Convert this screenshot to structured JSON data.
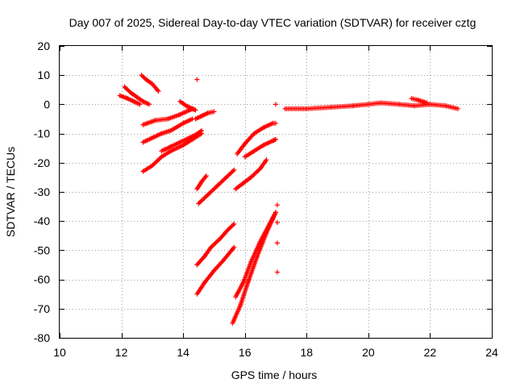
{
  "chart_data": {
    "type": "scatter",
    "title": "Day 007 of 2025, Sidereal Day-to-day VTEC variation (SDTVAR) for receiver cztg",
    "xlabel": "GPS time / hours",
    "ylabel": "SDTVAR / TECUs",
    "xlim": [
      10,
      24
    ],
    "ylim": [
      -80,
      20
    ],
    "xticks": [
      "10",
      "12",
      "14",
      "16",
      "18",
      "20",
      "22",
      "24"
    ],
    "yticks": [
      "20",
      "10",
      "0",
      "-10",
      "-20",
      "-30",
      "-40",
      "-50",
      "-60",
      "-70",
      "-80"
    ],
    "grid": true,
    "marker": "+",
    "series_color": "#ff0000",
    "segments": [
      {
        "name": "cluster-12h-a",
        "x": [
          11.95,
          12.2,
          12.4,
          12.6
        ],
        "y": [
          3,
          2,
          1,
          0
        ]
      },
      {
        "name": "cluster-12h-b",
        "x": [
          12.1,
          12.3,
          12.5,
          12.7,
          12.9
        ],
        "y": [
          6,
          4,
          2.5,
          1,
          0
        ]
      },
      {
        "name": "arc-12.7-5",
        "x": [
          12.65,
          12.8,
          13.0,
          13.2
        ],
        "y": [
          10,
          8.5,
          7,
          4.5
        ]
      },
      {
        "name": "arc-12.7-7",
        "x": [
          12.7,
          13.1,
          13.5,
          13.9,
          14.2,
          14.3
        ],
        "y": [
          -7,
          -5.5,
          -5,
          -3.5,
          -2,
          -1.5
        ]
      },
      {
        "name": "arc-12.7-13",
        "x": [
          12.7,
          13.0,
          13.3,
          13.6,
          14.0,
          14.3
        ],
        "y": [
          -13,
          -11.5,
          -10,
          -9,
          -6.5,
          -5
        ]
      },
      {
        "name": "arc-12.7-23",
        "x": [
          12.7,
          13.0,
          13.3,
          13.6,
          14.0,
          14.3,
          14.6
        ],
        "y": [
          -23,
          -21,
          -18,
          -16,
          -14,
          -12,
          -10
        ]
      },
      {
        "name": "arc-13.3-16",
        "x": [
          13.3,
          13.6,
          13.9,
          14.2,
          14.4,
          14.6
        ],
        "y": [
          -16,
          -14.5,
          -13,
          -11.5,
          -10.5,
          -9
        ]
      },
      {
        "name": "arc-14.0-1",
        "x": [
          13.9,
          14.1,
          14.3,
          14.4
        ],
        "y": [
          1,
          -0.5,
          -1.5,
          -2
        ]
      },
      {
        "name": "arc-14.4-5",
        "x": [
          14.4,
          14.6,
          14.8,
          15.0
        ],
        "y": [
          -5,
          -4,
          -3,
          -2.5
        ]
      },
      {
        "name": "arc-14.5-29",
        "x": [
          14.45,
          14.6,
          14.75
        ],
        "y": [
          -29,
          -26.5,
          -24.5
        ]
      },
      {
        "name": "arc-14.5-34",
        "x": [
          14.5,
          14.8,
          15.1,
          15.4,
          15.65
        ],
        "y": [
          -34,
          -31,
          -28,
          -25,
          -22.5
        ]
      },
      {
        "name": "arc-14.5-55",
        "x": [
          14.45,
          14.7,
          14.9,
          15.2,
          15.45,
          15.65
        ],
        "y": [
          -55,
          -52,
          -49,
          -46,
          -43,
          -41
        ]
      },
      {
        "name": "arc-14.5-65",
        "x": [
          14.45,
          14.7,
          15.0,
          15.3,
          15.65
        ],
        "y": [
          -65,
          -61,
          -57,
          -53.5,
          -49
        ]
      },
      {
        "name": "arc-15.8-17",
        "x": [
          15.75,
          16.0,
          16.3,
          16.6,
          16.9,
          17.0
        ],
        "y": [
          -17,
          -13.5,
          -10,
          -8,
          -6.5,
          -6.5
        ]
      },
      {
        "name": "arc-16.0-18",
        "x": [
          16.0,
          16.3,
          16.6,
          16.9,
          17.0
        ],
        "y": [
          -18,
          -16,
          -14,
          -12.5,
          -12
        ]
      },
      {
        "name": "arc-15.7-29",
        "x": [
          15.7,
          15.95,
          16.2,
          16.5,
          16.7
        ],
        "y": [
          -29,
          -27,
          -25,
          -22,
          -19
        ]
      },
      {
        "name": "arc-15.7-66",
        "x": [
          15.7,
          15.95,
          16.2,
          16.5,
          16.8,
          17.0
        ],
        "y": [
          -66,
          -61,
          -54,
          -47,
          -41,
          -37
        ]
      },
      {
        "name": "arc-15.6-75",
        "x": [
          15.6,
          15.85,
          16.1,
          16.4,
          16.7,
          17.0
        ],
        "y": [
          -75,
          -69,
          -61,
          -52,
          -44,
          -37
        ]
      },
      {
        "name": "flat-17.3-23",
        "x": [
          17.3,
          18.0,
          18.8,
          19.5,
          20.0,
          20.4,
          21.0,
          21.5,
          22.0,
          22.5,
          22.9
        ],
        "y": [
          -1.5,
          -1.5,
          -1,
          -0.5,
          0,
          0.5,
          0,
          -0.5,
          0,
          -0.5,
          -1.5
        ]
      },
      {
        "name": "hump-21.4",
        "x": [
          21.4,
          21.6,
          21.9
        ],
        "y": [
          2,
          1.5,
          0.5
        ]
      }
    ],
    "outliers": [
      {
        "x": 14.45,
        "y": 8.5
      },
      {
        "x": 17.0,
        "y": 0
      },
      {
        "x": 17.05,
        "y": -34.5
      },
      {
        "x": 17.05,
        "y": -40.5
      },
      {
        "x": 17.05,
        "y": -47.5
      },
      {
        "x": 17.05,
        "y": -57.5
      }
    ]
  }
}
